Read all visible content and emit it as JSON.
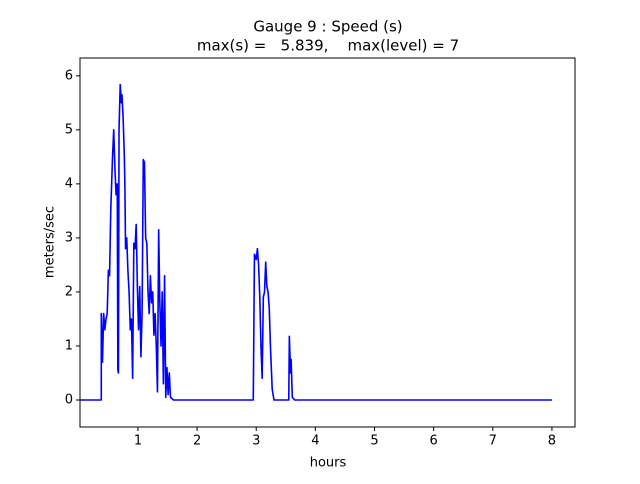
{
  "chart_data": {
    "type": "line",
    "title": "Gauge 9 : Speed (s)",
    "subtitle": "max(s) =   5.839,    max(level) = 7",
    "x_label": "hours",
    "y_label": "meters/sec",
    "xlim": [
      0.02,
      8.39
    ],
    "ylim": [
      -0.5,
      6.33
    ],
    "xticks": [
      1,
      2,
      3,
      4,
      5,
      6,
      7,
      8
    ],
    "yticks": [
      0,
      1,
      2,
      3,
      4,
      5,
      6
    ],
    "series": [
      {
        "color": "#0000ff",
        "x": [
          0.03,
          0.38,
          0.38,
          0.4,
          0.42,
          0.44,
          0.46,
          0.48,
          0.5,
          0.52,
          0.54,
          0.57,
          0.59,
          0.61,
          0.63,
          0.65,
          0.66,
          0.67,
          0.68,
          0.7,
          0.72,
          0.73,
          0.75,
          0.77,
          0.78,
          0.79,
          0.81,
          0.83,
          0.85,
          0.87,
          0.89,
          0.91,
          0.93,
          0.95,
          0.97,
          0.99,
          1.01,
          1.03,
          1.05,
          1.07,
          1.09,
          1.11,
          1.13,
          1.15,
          1.17,
          1.19,
          1.21,
          1.23,
          1.25,
          1.27,
          1.29,
          1.31,
          1.33,
          1.35,
          1.37,
          1.39,
          1.41,
          1.43,
          1.45,
          1.47,
          1.49,
          1.51,
          1.53,
          1.55,
          1.6,
          2.95,
          2.97,
          3.0,
          3.02,
          3.04,
          3.06,
          3.08,
          3.1,
          3.12,
          3.14,
          3.16,
          3.18,
          3.2,
          3.22,
          3.24,
          3.27,
          3.3,
          3.55,
          3.56,
          3.58,
          3.59,
          3.61,
          3.65,
          8.0
        ],
        "values": [
          0,
          0,
          1.6,
          0.7,
          1.6,
          1.3,
          1.5,
          1.6,
          2.4,
          2.3,
          3.5,
          4.5,
          5.0,
          4.3,
          3.8,
          4.0,
          0.55,
          0.5,
          5.0,
          5.839,
          5.5,
          5.65,
          5.2,
          4.5,
          3.9,
          2.8,
          3.0,
          2.4,
          2.0,
          1.3,
          1.5,
          0.4,
          2.9,
          2.8,
          3.25,
          2.1,
          1.3,
          2.1,
          0.8,
          1.6,
          4.45,
          4.4,
          3.0,
          2.9,
          2.0,
          1.6,
          2.3,
          1.8,
          2.0,
          1.2,
          1.6,
          1.0,
          0.15,
          3.15,
          1.8,
          1.0,
          2.0,
          0.3,
          2.3,
          0.05,
          0.6,
          0.1,
          0.5,
          0.05,
          0,
          0,
          2.7,
          2.6,
          2.8,
          2.5,
          1.9,
          1.0,
          0.4,
          1.9,
          2.0,
          2.55,
          2.1,
          2.0,
          1.7,
          1.0,
          0.2,
          0,
          0,
          1.18,
          0.5,
          0.75,
          0.05,
          0,
          0
        ]
      }
    ]
  }
}
